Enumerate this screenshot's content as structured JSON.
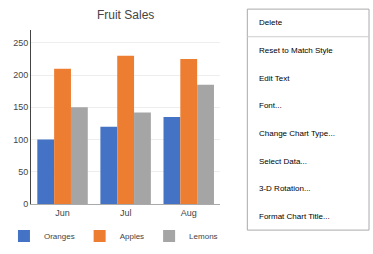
{
  "chart_data": {
    "type": "bar",
    "title": "Fruit Sales",
    "categories": [
      "Jun",
      "Jul",
      "Aug"
    ],
    "series": [
      {
        "name": "Oranges",
        "color": "#4472C4",
        "values": [
          100,
          120,
          135
        ]
      },
      {
        "name": "Apples",
        "color": "#ED7D31",
        "values": [
          210,
          230,
          225
        ]
      },
      {
        "name": "Lemons",
        "color": "#A5A5A5",
        "values": [
          150,
          142,
          185
        ]
      }
    ],
    "ylim": [
      0,
      270
    ],
    "yticks": [
      0,
      50,
      100,
      150,
      200,
      250
    ],
    "grid": true,
    "legend": "bottom",
    "annotations": [
      "Delete",
      "Reset to Match Style",
      "Edit Text",
      "Font...",
      "Change Chart Type...",
      "Select Data...",
      "3-D Rotation...",
      "Format Chart Title..."
    ]
  }
}
